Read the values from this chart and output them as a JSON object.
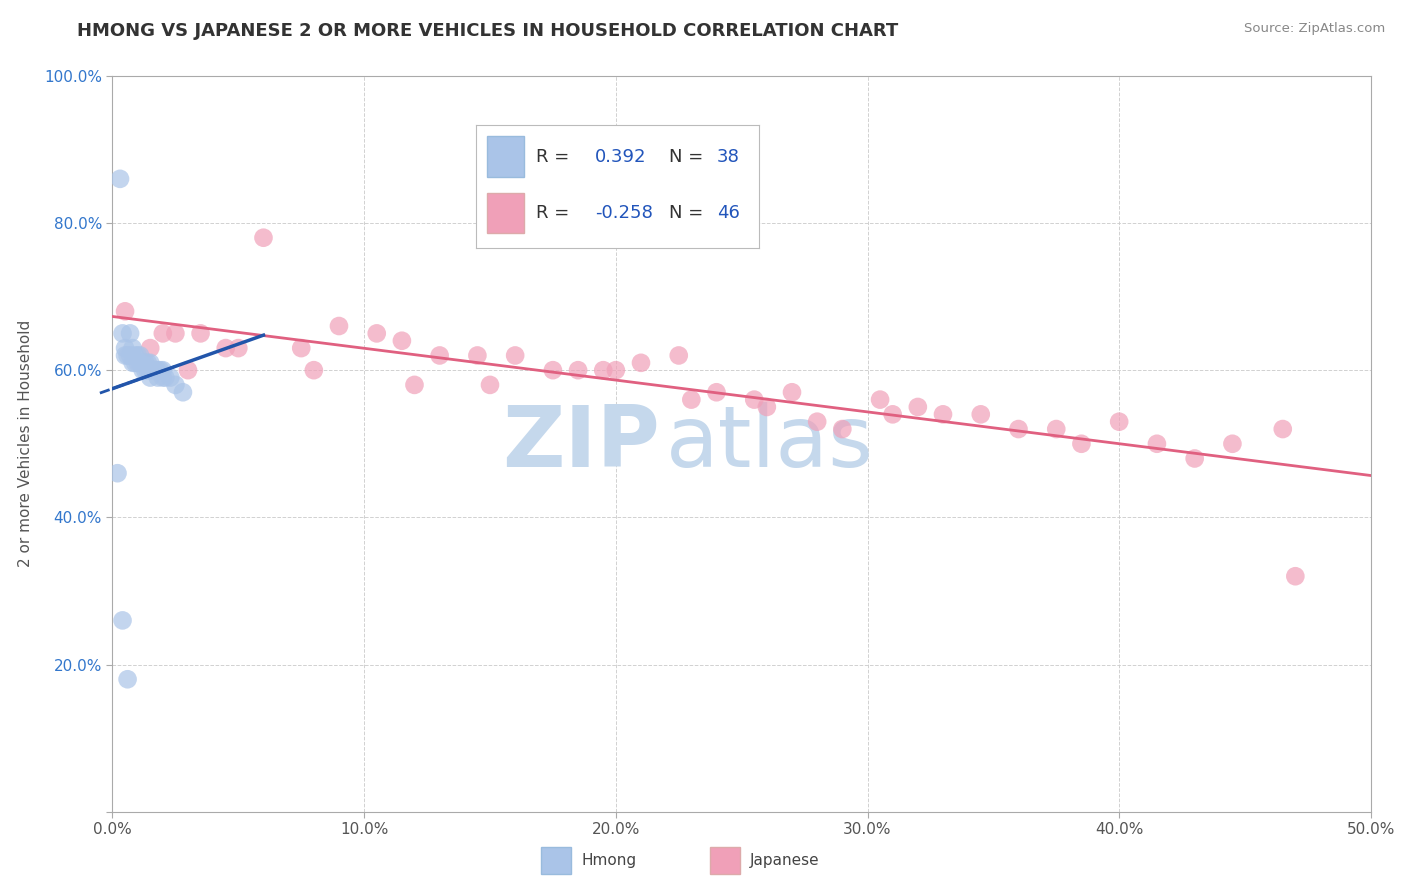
{
  "title": "HMONG VS JAPANESE 2 OR MORE VEHICLES IN HOUSEHOLD CORRELATION CHART",
  "source": "Source: ZipAtlas.com",
  "ylabel": "2 or more Vehicles in Household",
  "xlim": [
    0.0,
    50.0
  ],
  "ylim": [
    0.0,
    100.0
  ],
  "xtick_labels": [
    "0.0%",
    "10.0%",
    "20.0%",
    "30.0%",
    "40.0%",
    "50.0%"
  ],
  "ytick_labels": [
    "",
    "20.0%",
    "40.0%",
    "60.0%",
    "80.0%",
    "100.0%"
  ],
  "xtick_values": [
    0,
    10,
    20,
    30,
    40,
    50
  ],
  "ytick_values": [
    0,
    20,
    40,
    60,
    80,
    100
  ],
  "hmong_color": "#aac4e8",
  "japanese_color": "#f0a0b8",
  "hmong_line_color": "#2255aa",
  "japanese_line_color": "#e06080",
  "hmong_R": 0.392,
  "hmong_N": 38,
  "japanese_R": -0.258,
  "japanese_N": 46,
  "legend_label_color": "#333333",
  "legend_value_color": "#2255bb",
  "watermark_zip": "ZIP",
  "watermark_atlas": "atlas",
  "watermark_color": "#c5d8ec",
  "background_color": "#ffffff",
  "grid_color": "#cccccc",
  "hmong_x": [
    0.3,
    0.4,
    0.5,
    0.5,
    0.6,
    0.7,
    0.7,
    0.8,
    0.8,
    0.9,
    0.9,
    1.0,
    1.0,
    1.1,
    1.1,
    1.2,
    1.2,
    1.3,
    1.3,
    1.4,
    1.4,
    1.5,
    1.5,
    1.5,
    1.6,
    1.7,
    1.8,
    1.8,
    1.9,
    2.0,
    2.0,
    2.1,
    2.3,
    2.5,
    2.8,
    0.2,
    0.4,
    0.6
  ],
  "hmong_y": [
    86.0,
    65.0,
    63.0,
    62.0,
    62.0,
    65.0,
    62.0,
    63.0,
    61.0,
    62.0,
    61.0,
    62.0,
    61.0,
    62.0,
    61.0,
    61.0,
    60.0,
    61.0,
    60.0,
    61.0,
    60.0,
    61.0,
    60.0,
    59.0,
    60.0,
    60.0,
    60.0,
    59.0,
    60.0,
    60.0,
    59.0,
    59.0,
    59.0,
    58.0,
    57.0,
    46.0,
    26.0,
    18.0
  ],
  "japanese_x": [
    0.5,
    1.5,
    2.5,
    3.5,
    4.5,
    6.0,
    7.5,
    9.0,
    10.5,
    11.5,
    13.0,
    14.5,
    16.0,
    17.5,
    18.5,
    19.5,
    21.0,
    22.5,
    24.0,
    25.5,
    27.0,
    28.0,
    29.0,
    30.5,
    32.0,
    33.0,
    34.5,
    36.0,
    37.5,
    38.5,
    40.0,
    41.5,
    43.0,
    44.5,
    46.5,
    2.0,
    3.0,
    5.0,
    8.0,
    12.0,
    15.0,
    20.0,
    23.0,
    26.0,
    31.0,
    47.0
  ],
  "japanese_y": [
    68.0,
    63.0,
    65.0,
    65.0,
    63.0,
    78.0,
    63.0,
    66.0,
    65.0,
    64.0,
    62.0,
    62.0,
    62.0,
    60.0,
    60.0,
    60.0,
    61.0,
    62.0,
    57.0,
    56.0,
    57.0,
    53.0,
    52.0,
    56.0,
    55.0,
    54.0,
    54.0,
    52.0,
    52.0,
    50.0,
    53.0,
    50.0,
    48.0,
    50.0,
    52.0,
    65.0,
    60.0,
    63.0,
    60.0,
    58.0,
    58.0,
    60.0,
    56.0,
    55.0,
    54.0,
    32.0
  ],
  "hmong_line_x0": 0.0,
  "hmong_line_y0": 60.5,
  "hmong_line_x1": 2.0,
  "hmong_line_y1": 65.0,
  "japanese_line_x0": 0.0,
  "japanese_line_y0": 63.0,
  "japanese_line_x1": 50.0,
  "japanese_line_y1": 52.0
}
